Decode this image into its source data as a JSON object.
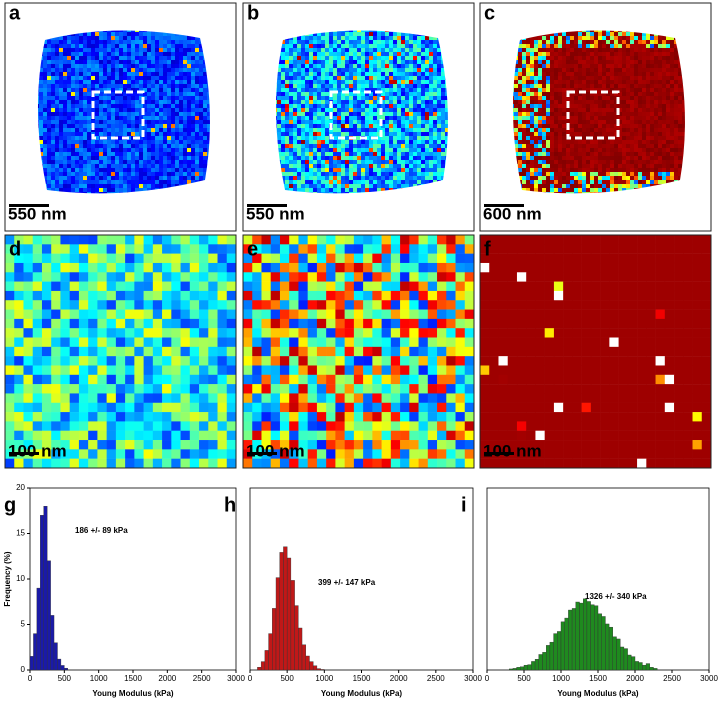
{
  "panels": [
    {
      "label": "a",
      "scale": "550 nm"
    },
    {
      "label": "b",
      "scale": "550 nm"
    },
    {
      "label": "c",
      "scale": "600 nm"
    },
    {
      "label": "d",
      "scale": "100 nm"
    },
    {
      "label": "e",
      "scale": "100 nm"
    },
    {
      "label": "f",
      "scale": "100 nm"
    }
  ],
  "chart_data": [
    {
      "type": "histogram",
      "label": "g",
      "color": "#1a1aa8",
      "annotation": "186 +/- 89 kPa",
      "xlabel": "Young Modulus (kPa)",
      "ylabel": "Frequency (%)",
      "bins": [
        0,
        50,
        100,
        150,
        200,
        250,
        300,
        350,
        400,
        450,
        500,
        550
      ],
      "values": [
        1.5,
        4,
        9,
        17,
        18,
        12,
        6,
        3,
        1.2,
        0.5,
        0.2
      ],
      "xlim": [
        0,
        3000
      ],
      "xticks": [
        0,
        500,
        1000,
        1500,
        2000,
        2500,
        3000
      ],
      "ylim": [
        0,
        20
      ],
      "yticks": [
        0,
        5,
        10,
        15,
        20
      ]
    },
    {
      "type": "histogram",
      "label": "h",
      "color": "#c01818",
      "annotation": "399 +/- 147 kPa",
      "xlabel": "Young Modulus (kPa)",
      "bins": [
        0,
        50,
        100,
        150,
        200,
        250,
        300,
        350,
        400,
        450,
        500,
        550,
        600,
        650,
        700,
        750,
        800,
        850,
        900,
        950,
        1000
      ],
      "values": [
        0,
        0,
        0.1,
        0.3,
        0.7,
        1.3,
        2.2,
        3.3,
        4.2,
        4.4,
        4.0,
        3.2,
        2.3,
        1.5,
        0.9,
        0.5,
        0.3,
        0.15,
        0.05,
        0.02
      ],
      "xlim": [
        0,
        3000
      ],
      "xticks": [
        0,
        500,
        1000,
        1500,
        2000,
        2500,
        3000
      ],
      "ylim": [
        0,
        6.5
      ]
    },
    {
      "type": "histogram",
      "label": "i",
      "color": "#1f8a1f",
      "annotation": "1326 +/- 340 kPa",
      "xlabel": "Young Modulus (kPa)",
      "bins": [
        300,
        350,
        400,
        450,
        500,
        550,
        600,
        650,
        700,
        750,
        800,
        850,
        900,
        950,
        1000,
        1050,
        1100,
        1150,
        1200,
        1250,
        1300,
        1350,
        1400,
        1450,
        1500,
        1550,
        1600,
        1650,
        1700,
        1750,
        1800,
        1850,
        1900,
        1950,
        2000,
        2050,
        2100,
        2150,
        2200,
        2250,
        2300
      ],
      "values": [
        0.02,
        0.03,
        0.05,
        0.06,
        0.09,
        0.1,
        0.16,
        0.2,
        0.29,
        0.33,
        0.46,
        0.52,
        0.68,
        0.72,
        0.9,
        0.97,
        1.12,
        1.15,
        1.27,
        1.25,
        1.33,
        1.28,
        1.22,
        1.2,
        1.05,
        1.0,
        0.86,
        0.8,
        0.62,
        0.58,
        0.43,
        0.4,
        0.28,
        0.25,
        0.16,
        0.14,
        0.09,
        0.12,
        0.05,
        0.03
      ],
      "xlim": [
        0,
        3000
      ],
      "xticks": [
        0,
        500,
        1000,
        1500,
        2000,
        2500,
        3000
      ],
      "ylim": [
        0,
        3.4
      ]
    }
  ]
}
